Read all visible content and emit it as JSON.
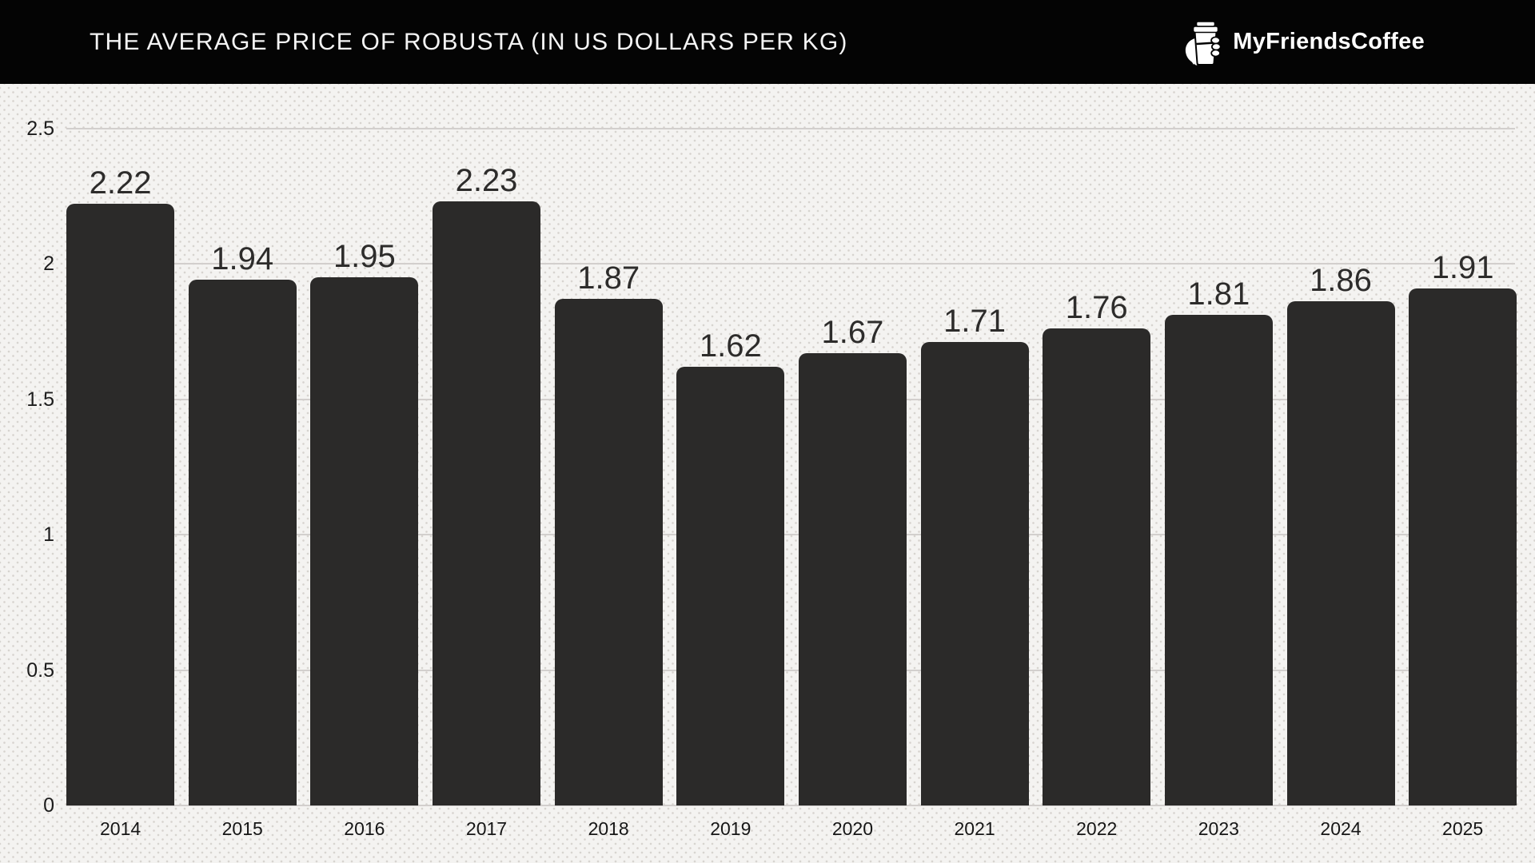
{
  "header": {
    "title": "THE AVERAGE PRICE OF ROBUSTA (IN US DOLLARS PER KG)",
    "brand": "MyFriendsCoffee"
  },
  "icons": {
    "logo": "coffee-cup-in-hand-icon"
  },
  "colors": {
    "header_background": "#040404",
    "header_text": "#f4f4f4",
    "chart_background": "#f4f3f1",
    "background_dots": "#b2aca5",
    "bar": "#2b2a29",
    "value_label": "#2d2c2b",
    "axis_label": "#1c1c1c",
    "gridline": "#d2cfcd"
  },
  "chart_data": {
    "type": "bar",
    "title": "THE AVERAGE PRICE OF ROBUSTA (IN US DOLLARS PER KG)",
    "categories": [
      "2014",
      "2015",
      "2016",
      "2017",
      "2018",
      "2019",
      "2020",
      "2021",
      "2022",
      "2023",
      "2024",
      "2025"
    ],
    "values": [
      2.22,
      1.94,
      1.95,
      2.23,
      1.87,
      1.62,
      1.67,
      1.71,
      1.76,
      1.81,
      1.86,
      1.91
    ],
    "value_labels": [
      "2.22",
      "1.94",
      "1.95",
      "2.23",
      "1.87",
      "1.62",
      "1.67",
      "1.71",
      "1.76",
      "1.81",
      "1.86",
      "1.91"
    ],
    "xlabel": "",
    "ylabel": "",
    "ylim": [
      0,
      2.5
    ],
    "yticks": [
      0,
      0.5,
      1,
      1.5,
      2,
      2.5
    ],
    "ytick_labels": [
      "0",
      "0.5",
      "1",
      "1.5",
      "2",
      "2.5"
    ],
    "grid": true,
    "legend": false,
    "bar_corner_radius": "rounded-top",
    "value_labels_position": "above-bars"
  }
}
